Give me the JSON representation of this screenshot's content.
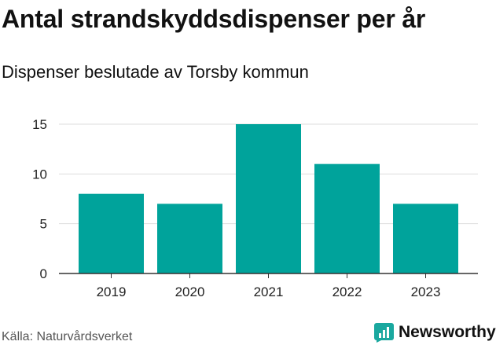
{
  "header": {
    "title": "Antal strandskyddsdispenser per år",
    "subtitle": "Dispenser beslutade av Torsby kommun"
  },
  "footer": {
    "source": "Källa: Naturvårdsverket",
    "brand": "Newsworthy",
    "brand_icon": "newsworthy-logo-icon"
  },
  "colors": {
    "bar": "#00a39b",
    "grid": "#dddddd",
    "axis": "#333333",
    "brand": "#1aa89f"
  },
  "chart_data": {
    "type": "bar",
    "categories": [
      "2019",
      "2020",
      "2021",
      "2022",
      "2023"
    ],
    "values": [
      8,
      7,
      15,
      11,
      7
    ],
    "ylim": [
      0,
      15
    ],
    "yticks": [
      0,
      5,
      10,
      15
    ],
    "grid": true,
    "legend": "none"
  }
}
